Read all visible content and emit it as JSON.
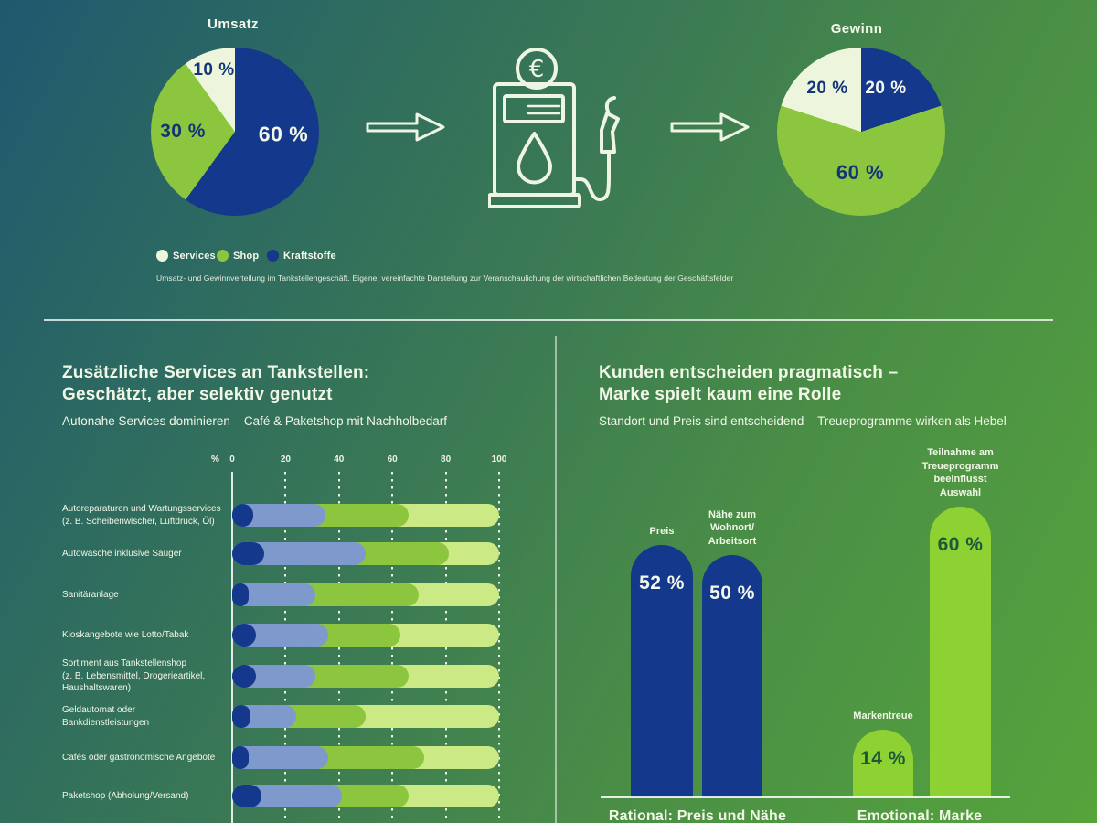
{
  "theme": {
    "bg_top_left": "#20586f",
    "bg_bottom_right": "#56a43c",
    "navy": "#14388c",
    "steel_blue": "#7e99cb",
    "shop_green": "#8cc63e",
    "light_green": "#cbe985",
    "bright_green": "#8ed133",
    "cream": "#edf6dc",
    "text_light": "#f3f8ea",
    "text_navy": "#123578",
    "text_dark_green": "#1c5839"
  },
  "flow": {
    "legend": [
      {
        "label": "Services",
        "color": "#edf6dc"
      },
      {
        "label": "Shop",
        "color": "#8cc63e"
      },
      {
        "label": "Kraftstoffe",
        "color": "#14388c"
      }
    ],
    "caption": "Umsatz- und Gewinnverteilung im Tankstellengeschäft. Eigene, vereinfachte Darstellung zur Veranschaulichung der wirtschaftlichen Bedeutung der Geschäftsfelder",
    "pump_icon": "fuel-pump-with-euro-icon",
    "arrow_icon": "arrow-right-icon"
  },
  "left_panel": {
    "title_line1": "Zusätzliche Services an Tankstellen:",
    "title_line2": "Geschätzt, aber selektiv genutzt",
    "subtitle": "Autonahe Services dominieren – Café & Paketshop mit Nachholbedarf"
  },
  "right_panel": {
    "title_line1": "Kunden entscheiden pragmatisch –",
    "title_line2": "Marke spielt kaum eine Rolle",
    "subtitle": "Standort und Preis sind entscheidend – Treueprogramme wirken als Hebel"
  },
  "chart_data": [
    {
      "type": "pie",
      "title": "Umsatz",
      "note": "slices clockwise from 12 o'clock",
      "slices": [
        {
          "label": "Kraftstoffe",
          "value": 60,
          "color": "#14388c",
          "text": "60 %"
        },
        {
          "label": "Shop",
          "value": 30,
          "color": "#8cc63e",
          "text": "30 %"
        },
        {
          "label": "Services",
          "value": 10,
          "color": "#edf6dc",
          "text": "10 %"
        }
      ]
    },
    {
      "type": "pie",
      "title": "Gewinn",
      "note": "slices clockwise from 12 o'clock",
      "slices": [
        {
          "label": "Kraftstoffe",
          "value": 20,
          "color": "#14388c",
          "text": "20 %"
        },
        {
          "label": "Shop",
          "value": 60,
          "color": "#8cc63e",
          "text": "60 %"
        },
        {
          "label": "Services",
          "value": 20,
          "color": "#edf6dc",
          "text": "20 %"
        }
      ]
    },
    {
      "type": "bar",
      "orientation": "horizontal-stacked",
      "title": "Zusätzliche Services an Tankstellen: Geschätzt, aber selektiv genutzt",
      "axis": {
        "unit": "%",
        "ticks": [
          "0",
          "20",
          "40",
          "60",
          "80",
          "100"
        ],
        "xlim": [
          0,
          100
        ],
        "gridlines": "dotted"
      },
      "colors": [
        "#14388c",
        "#7e99cb",
        "#8cc63e",
        "#cbe985"
      ],
      "rows": [
        {
          "label_lines": [
            "Autoreparaturen und Wartungsservices",
            "(z. B. Scheibenwischer, Luftdruck, Öl)"
          ],
          "segments": [
            8,
            27,
            31,
            34
          ]
        },
        {
          "label_lines": [
            "Autowäsche inklusive Sauger"
          ],
          "segments": [
            12,
            38,
            31,
            19
          ]
        },
        {
          "label_lines": [
            "Sanitäranlage"
          ],
          "segments": [
            6,
            25,
            39,
            30
          ]
        },
        {
          "label_lines": [
            "Kioskangebote wie Lotto/Tabak"
          ],
          "segments": [
            9,
            27,
            27,
            37
          ]
        },
        {
          "label_lines": [
            "Sortiment aus Tankstellenshop",
            "(z. B. Lebensmittel, Drogerieartikel,",
            "Haushaltswaren)"
          ],
          "segments": [
            9,
            22,
            35,
            34
          ]
        },
        {
          "label_lines": [
            "Geldautomat oder",
            "Bankdienstleistungen"
          ],
          "segments": [
            7,
            17,
            26,
            50
          ]
        },
        {
          "label_lines": [
            "Cafés oder gastronomische Angebote"
          ],
          "segments": [
            6,
            30,
            36,
            28
          ]
        },
        {
          "label_lines": [
            "Paketshop (Abholung/Versand)"
          ],
          "segments": [
            11,
            30,
            25,
            34
          ]
        }
      ]
    },
    {
      "type": "bar",
      "orientation": "vertical-rounded-top",
      "title": "Kunden entscheiden pragmatisch – Marke spielt kaum eine Rolle",
      "ylim": [
        0,
        60
      ],
      "bars": [
        {
          "label_lines": [
            "Preis"
          ],
          "value": 52,
          "value_text": "52 %",
          "color": "#14388c",
          "value_color": "#f4f8ec"
        },
        {
          "label_lines": [
            "Nähe zum",
            "Wohnort/",
            "Arbeitsort"
          ],
          "value": 50,
          "value_text": "50 %",
          "color": "#14388c",
          "value_color": "#f4f8ec"
        },
        {
          "label_lines": [
            "Markentreue"
          ],
          "value": 14,
          "value_text": "14 %",
          "color": "#8ed133",
          "value_color": "#1c5839"
        },
        {
          "label_lines": [
            "Teilnahme am",
            "Treueprogramm",
            "beeinflusst",
            "Auswahl"
          ],
          "value": 60,
          "value_text": "60 %",
          "color": "#8ed133",
          "value_color": "#1c5839"
        }
      ],
      "group_labels": [
        "Rational: Preis und Nähe",
        "Emotional: Marke"
      ]
    }
  ]
}
